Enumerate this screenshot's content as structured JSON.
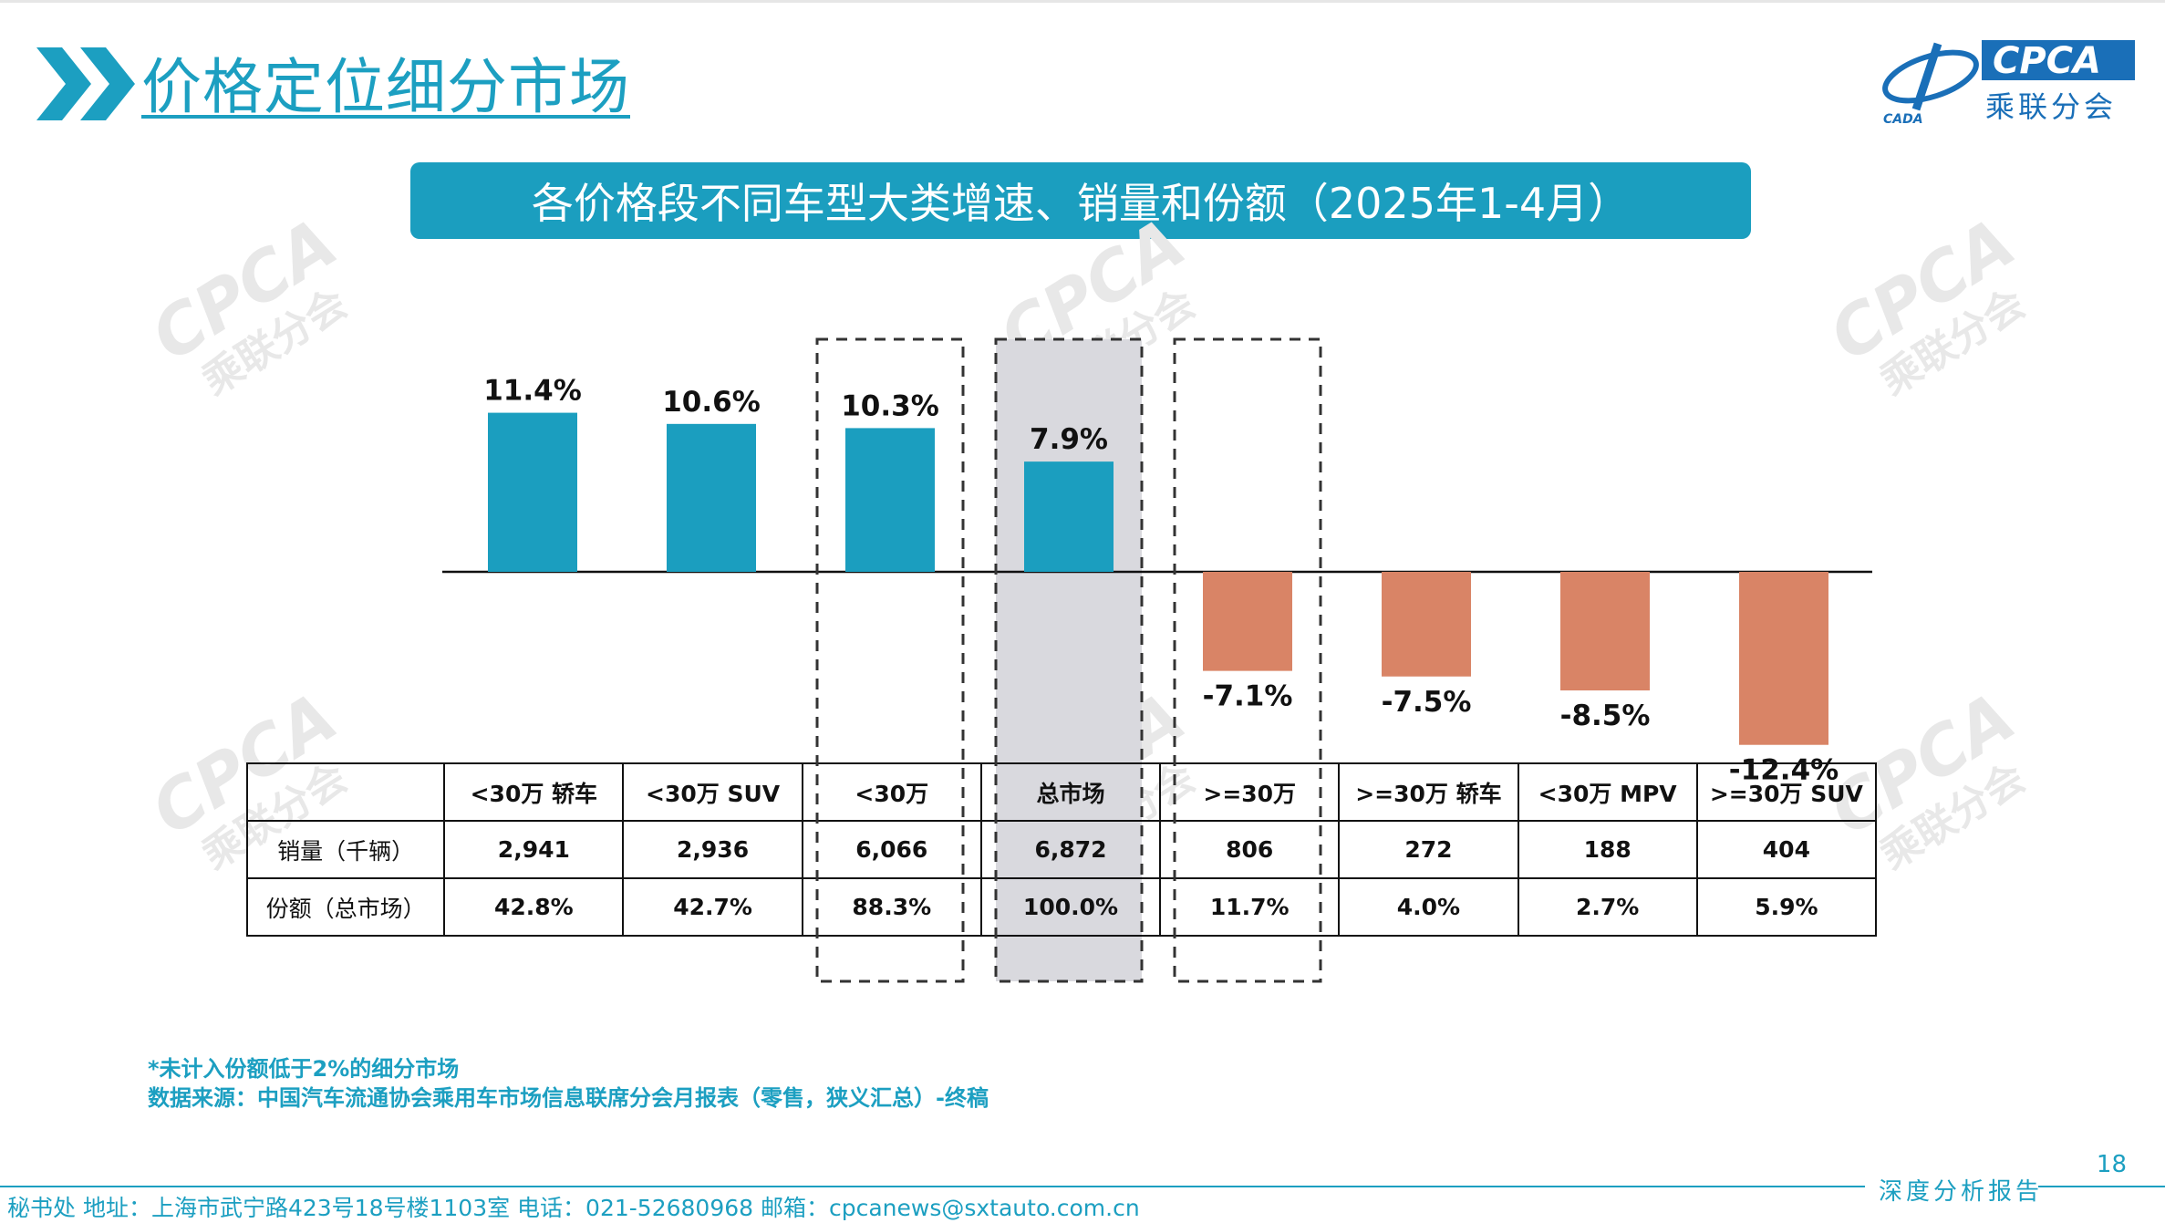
{
  "header": {
    "title": "价格定位细分市场",
    "logo_text": "CPCA",
    "logo_sub": "乘联分会",
    "logo_mark": "CADA"
  },
  "chart_title": "各价格段不同车型大类增速、销量和份额（2025年1-4月）",
  "chart_data": {
    "type": "bar",
    "categories": [
      "<30万 轿车",
      "<30万 SUV",
      "<30万",
      "总市场",
      ">=30万",
      ">=30万 轿车",
      "<30万 MPV",
      ">=30万 SUV"
    ],
    "series": [
      {
        "values": [
          11.4,
          10.6,
          10.3,
          7.9,
          -7.1,
          -7.5,
          -8.5,
          -12.4
        ]
      }
    ],
    "data_labels": [
      "11.4%",
      "10.6%",
      "10.3%",
      "7.9%",
      "-7.1%",
      "-7.5%",
      "-8.5%",
      "-12.4%"
    ],
    "ylim": [
      -13,
      13
    ],
    "colors": {
      "positive": "#1b9ebf",
      "negative": "#d98466",
      "highlight_bg": "#d9d9de"
    },
    "highlighted_category": "总市场",
    "dashed_categories": [
      "<30万",
      ">=30万"
    ],
    "table": {
      "row_labels": [
        "销量（千辆）",
        "份额（总市场）"
      ],
      "sales": [
        "2,941",
        "2,936",
        "6,066",
        "6,872",
        "806",
        "272",
        "188",
        "404"
      ],
      "share": [
        "42.8%",
        "42.7%",
        "88.3%",
        "100.0%",
        "11.7%",
        "4.0%",
        "2.7%",
        "5.9%"
      ]
    }
  },
  "notes": {
    "line1": "*未计入份额低于2%的细分市场",
    "line2": "数据来源：中国汽车流通协会乘用车市场信息联席分会月报表（零售，狭义汇总）-终稿"
  },
  "page_number": "18",
  "footer": {
    "right_label": "深度分析报告",
    "contact": "秘书处   地址：上海市武宁路423号18号楼1103室  电话：021-52680968   邮箱：cpcanews@sxtauto.com.cn"
  }
}
